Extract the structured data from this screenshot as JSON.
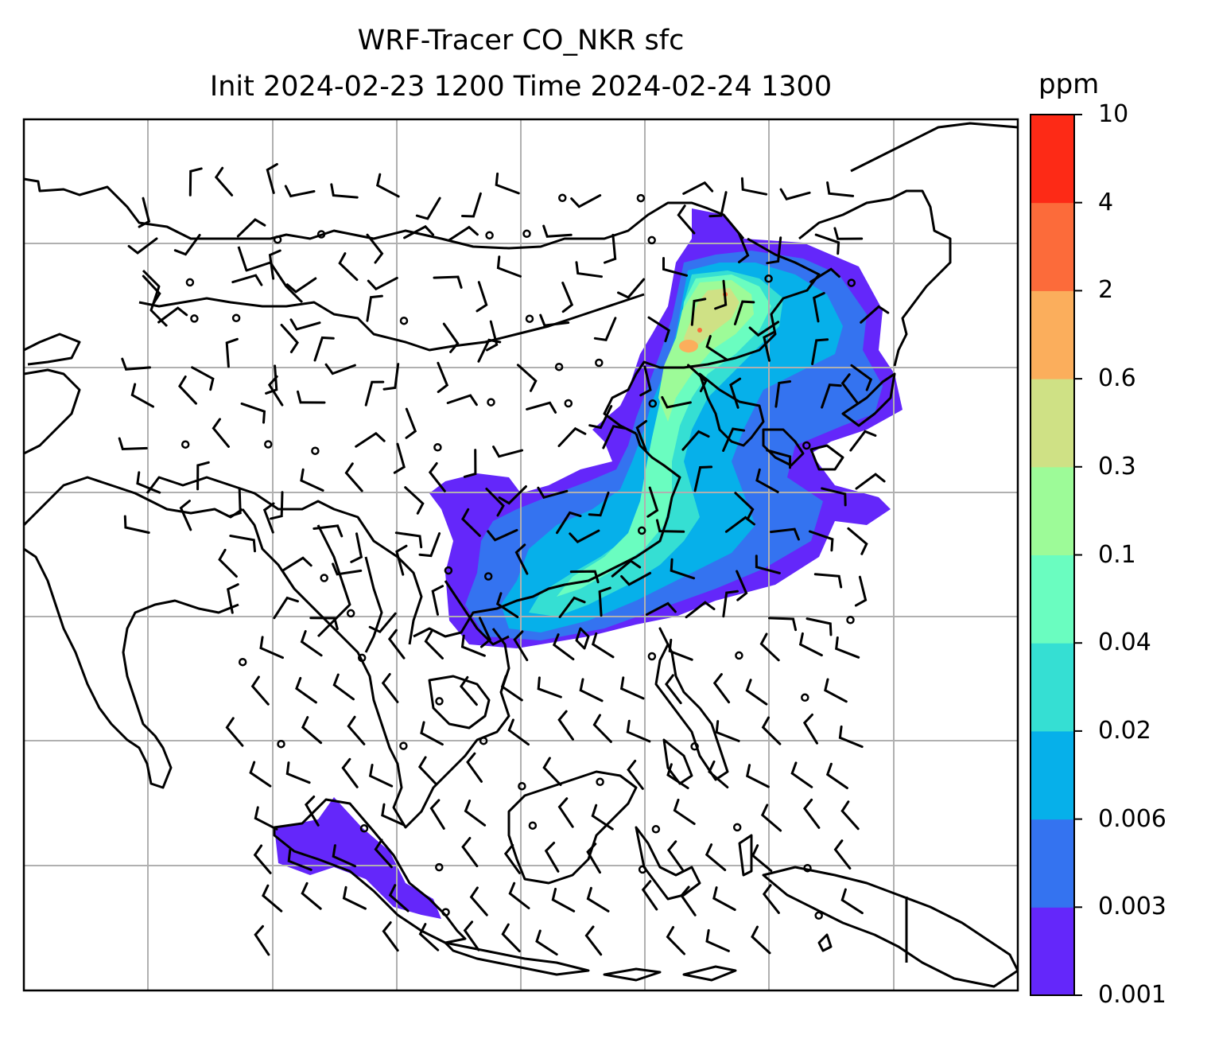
{
  "title": {
    "line1": "WRF-Tracer CO_NKR sfc",
    "line2": "Init 2024-02-23 1200 Time 2024-02-24 1300"
  },
  "colorbar": {
    "unit": "ppm",
    "levels": [
      "0.001",
      "0.003",
      "0.006",
      "0.02",
      "0.04",
      "0.1",
      "0.3",
      "0.6",
      "2",
      "4",
      "10"
    ],
    "colors": [
      "#6427fa",
      "#3473f0",
      "#06b0ea",
      "#35dfd3",
      "#6afdc0",
      "#9dfb98",
      "#cfe185",
      "#fbae5c",
      "#fc6b3a",
      "#fd2a16"
    ]
  },
  "map": {
    "gridlines": true,
    "features": [
      "coastlines",
      "country-borders",
      "wind-barbs",
      "calm-wind-circles",
      "tracer-concentration-fill"
    ]
  }
}
